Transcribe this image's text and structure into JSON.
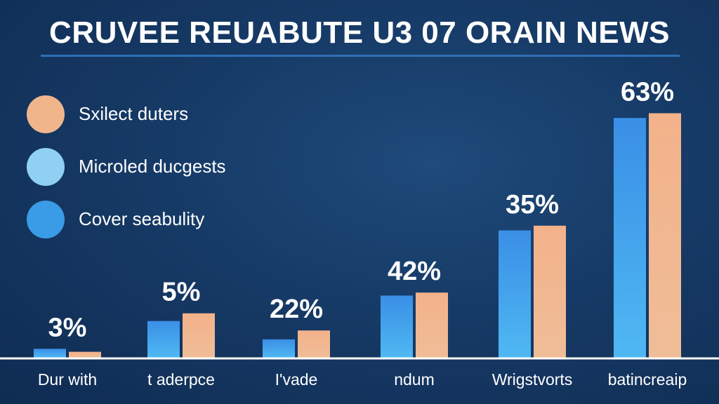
{
  "chart_data": {
    "type": "bar",
    "title": "CRUVEE REUABUTE U3 07 ORAIN NEWS",
    "categories": [
      "Dur with",
      "t aderpce",
      "I'vade",
      "ndum",
      "Wrigstvorts",
      "batincreaip"
    ],
    "series": [
      {
        "name": "Microled ducgests",
        "values": [
          1.5,
          6.2,
          3.1,
          10.5,
          21.5,
          40.5
        ]
      },
      {
        "name": "Sxilect duters",
        "values": [
          1.0,
          7.5,
          4.6,
          11.0,
          22.3,
          41.3
        ]
      }
    ],
    "value_labels": [
      "3%",
      "5%",
      "22%",
      "42%",
      "35%",
      "63%"
    ],
    "legend": [
      {
        "label": "Sxilect duters",
        "color": "#f1b58c"
      },
      {
        "label": "Microled ducgests",
        "color": "#8fd0f3"
      },
      {
        "label": "Cover seabulity",
        "color": "#3a9be6"
      }
    ],
    "colors": {
      "bar_blue": "#3d98ea",
      "bar_peach": "#f2b48a",
      "baseline": "#ffffff"
    },
    "ylim": [
      0,
      50
    ],
    "legend_position": "top-left"
  }
}
